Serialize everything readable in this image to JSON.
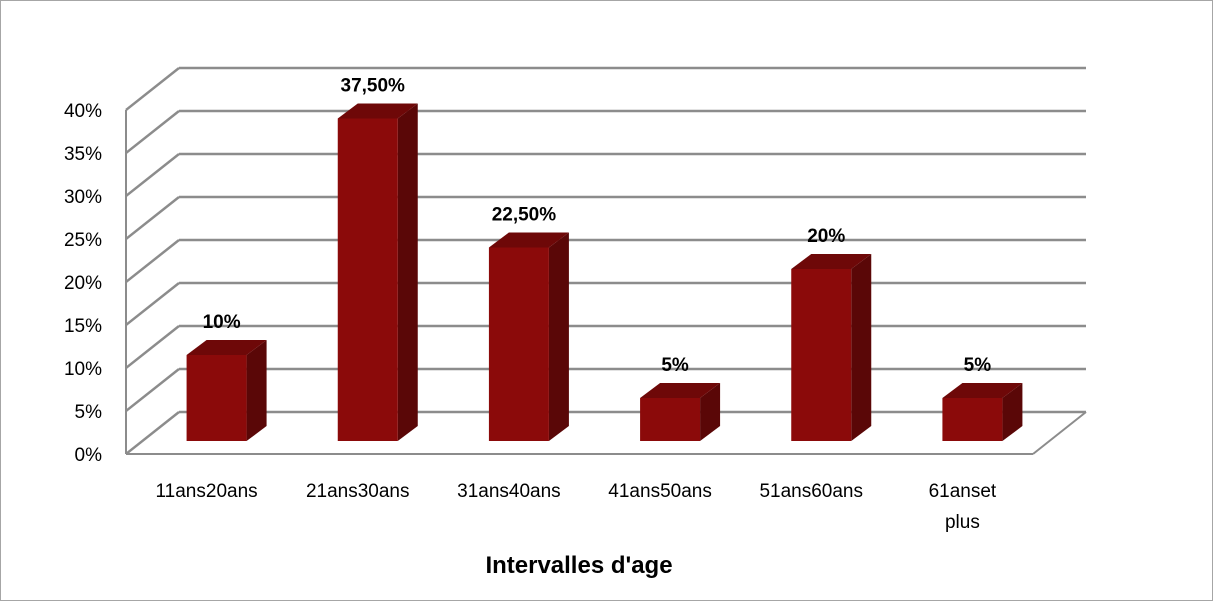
{
  "chart_data": {
    "type": "bar",
    "categories": [
      "11ans20ans",
      "21ans30ans",
      "31ans40ans",
      "41ans50ans",
      "51ans60ans",
      "61anset plus"
    ],
    "values": [
      10,
      37.5,
      22.5,
      5,
      20,
      5
    ],
    "data_labels": [
      "10%",
      "37,50%",
      "22,50%",
      "5%",
      "20%",
      "5%"
    ],
    "y_ticks": [
      "0%",
      "5%",
      "10%",
      "15%",
      "20%",
      "25%",
      "30%",
      "35%",
      "40%"
    ],
    "ylim": [
      0,
      40
    ],
    "title": "",
    "xlabel": "Intervalles d'age",
    "ylabel": "",
    "grid": true,
    "style": "3d-column",
    "colors": {
      "bar_front": "#8b0a0a",
      "bar_side": "#5a0707",
      "bar_top": "#6e0808",
      "grid": "#8c8c8c"
    }
  }
}
